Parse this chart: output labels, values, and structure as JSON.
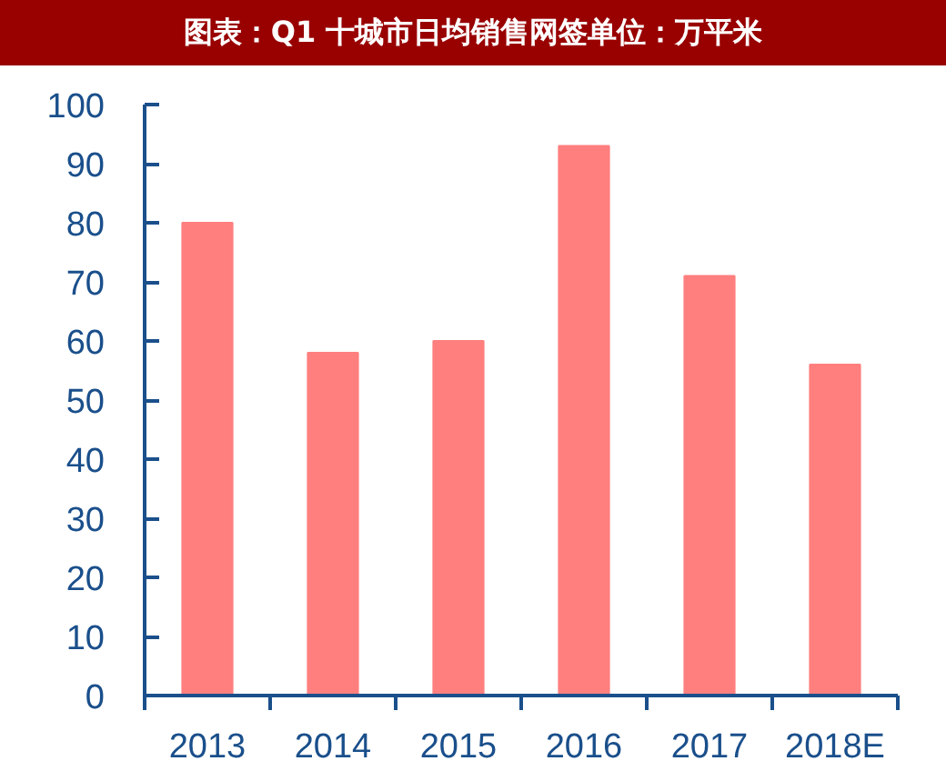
{
  "chart_data": {
    "type": "bar",
    "title": "图表：Q1 十城市日均销售网签单位：万平米",
    "categories": [
      "2013",
      "2014",
      "2015",
      "2016",
      "2017",
      "2018E"
    ],
    "values": [
      80,
      58,
      60,
      93,
      71,
      56
    ],
    "color": "#ff7f7f",
    "ylim": [
      0,
      100
    ],
    "yticks": [
      0,
      10,
      20,
      30,
      40,
      50,
      60,
      70,
      80,
      90,
      100
    ]
  }
}
